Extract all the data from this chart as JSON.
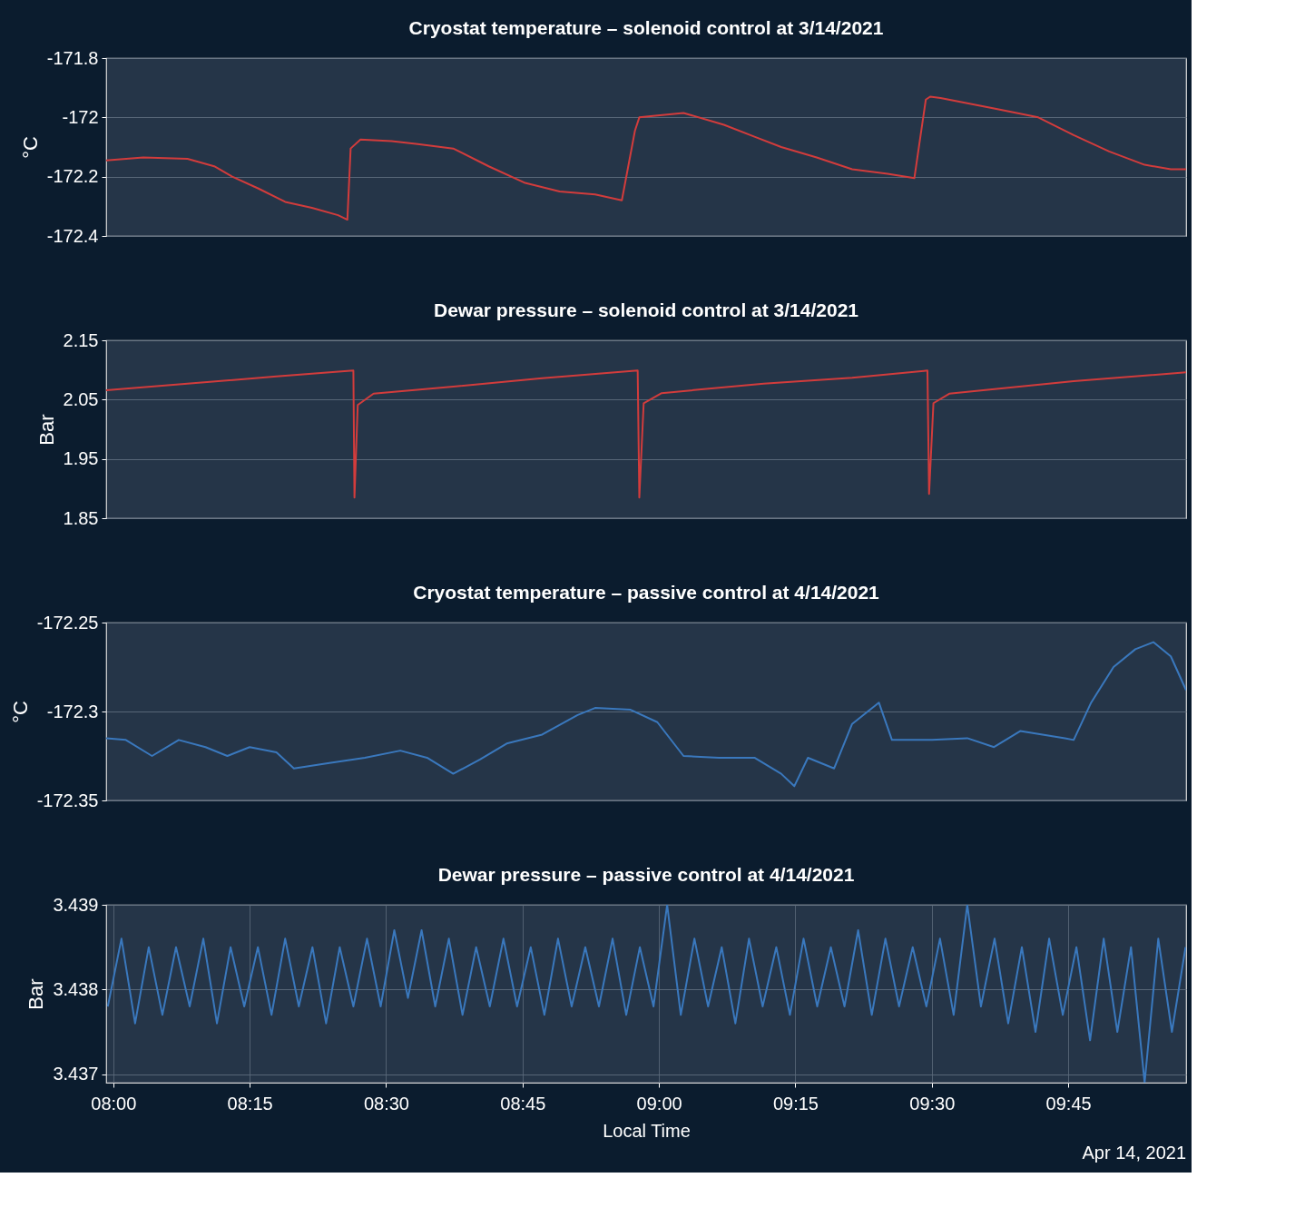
{
  "chart_data": [
    {
      "type": "line",
      "title": "Cryostat temperature – solenoid control  at 3/14/2021",
      "ylabel": "°C",
      "xlim": [
        7.987,
        9.966
      ],
      "ylim": [
        -172.4,
        -171.8
      ],
      "yticks": [
        -171.8,
        -172,
        -172.2,
        -172.4
      ],
      "grid": "y",
      "tick_labels": "y",
      "x": [
        7.987,
        8.055,
        8.136,
        8.185,
        8.218,
        8.266,
        8.315,
        8.364,
        8.412,
        8.429,
        8.435,
        8.453,
        8.51,
        8.558,
        8.623,
        8.688,
        8.753,
        8.818,
        8.883,
        8.932,
        8.956,
        8.964,
        8.989,
        9.045,
        9.119,
        9.175,
        9.224,
        9.289,
        9.354,
        9.419,
        9.468,
        9.489,
        9.497,
        9.516,
        9.614,
        9.695,
        9.76,
        9.825,
        9.89,
        9.938,
        9.966
      ],
      "series": [
        {
          "color": "#d23c3c",
          "values": [
            -172.145,
            -172.135,
            -172.14,
            -172.165,
            -172.2,
            -172.24,
            -172.285,
            -172.305,
            -172.33,
            -172.345,
            -172.105,
            -172.075,
            -172.08,
            -172.09,
            -172.105,
            -172.165,
            -172.22,
            -172.25,
            -172.26,
            -172.28,
            -172.045,
            -172.0,
            -171.995,
            -171.985,
            -172.025,
            -172.065,
            -172.1,
            -172.135,
            -172.175,
            -172.19,
            -172.205,
            -171.94,
            -171.93,
            -171.935,
            -171.97,
            -172.0,
            -172.06,
            -172.115,
            -172.16,
            -172.175,
            -172.175
          ]
        }
      ]
    },
    {
      "type": "line",
      "title": "Dewar pressure – solenoid control  at 3/14/2021",
      "ylabel": "Bar",
      "xlim": [
        7.987,
        9.966
      ],
      "ylim": [
        1.85,
        2.15
      ],
      "yticks": [
        2.15,
        2.05,
        1.95,
        1.85
      ],
      "grid": "y",
      "tick_labels": "y",
      "x": [
        7.987,
        8.136,
        8.299,
        8.44,
        8.442,
        8.448,
        8.477,
        8.623,
        8.786,
        8.961,
        8.964,
        8.972,
        9.005,
        9.192,
        9.354,
        9.492,
        9.495,
        9.503,
        9.532,
        9.76,
        9.966
      ],
      "series": [
        {
          "color": "#d23c3c",
          "values": [
            2.066,
            2.077,
            2.089,
            2.099,
            1.885,
            2.041,
            2.06,
            2.072,
            2.086,
            2.099,
            1.885,
            2.044,
            2.061,
            2.077,
            2.087,
            2.099,
            1.891,
            2.044,
            2.06,
            2.081,
            2.096
          ]
        }
      ]
    },
    {
      "type": "line",
      "title": "Cryostat temperature – passive control  at 4/14/2021",
      "ylabel": "°C",
      "xlim": [
        7.987,
        9.966
      ],
      "ylim": [
        -172.35,
        -172.25
      ],
      "yticks": [
        -172.25,
        -172.3,
        -172.35
      ],
      "grid": "y",
      "tick_labels": "y",
      "x": [
        7.987,
        8.023,
        8.071,
        8.12,
        8.169,
        8.209,
        8.25,
        8.299,
        8.331,
        8.396,
        8.461,
        8.526,
        8.575,
        8.623,
        8.672,
        8.721,
        8.786,
        8.851,
        8.883,
        8.948,
        8.997,
        9.045,
        9.11,
        9.175,
        9.224,
        9.248,
        9.273,
        9.321,
        9.354,
        9.403,
        9.427,
        9.5,
        9.565,
        9.614,
        9.662,
        9.744,
        9.76,
        9.792,
        9.833,
        9.873,
        9.906,
        9.938,
        9.966
      ],
      "series": [
        {
          "color": "#3a78bd",
          "values": [
            -172.315,
            -172.316,
            -172.325,
            -172.316,
            -172.32,
            -172.325,
            -172.32,
            -172.323,
            -172.332,
            -172.329,
            -172.326,
            -172.322,
            -172.326,
            -172.335,
            -172.327,
            -172.318,
            -172.313,
            -172.302,
            -172.298,
            -172.299,
            -172.306,
            -172.325,
            -172.326,
            -172.326,
            -172.335,
            -172.342,
            -172.326,
            -172.332,
            -172.307,
            -172.295,
            -172.316,
            -172.316,
            -172.315,
            -172.32,
            -172.311,
            -172.315,
            -172.316,
            -172.295,
            -172.275,
            -172.265,
            -172.261,
            -172.269,
            -172.288
          ]
        }
      ]
    },
    {
      "type": "line",
      "title": "Dewar pressure – passive control  at 4/14/2021",
      "ylabel": "Bar",
      "xlabel": "Local Time",
      "annotations": [
        "Apr 14, 2021"
      ],
      "xlim": [
        7.987,
        9.966
      ],
      "ylim": [
        3.4369,
        3.439
      ],
      "yticks": [
        3.437,
        3.438,
        3.439
      ],
      "grid": true,
      "xticks": [
        {
          "value": 8,
          "label": "08:00"
        },
        {
          "value": 8.25,
          "label": "08:15"
        },
        {
          "value": 8.5,
          "label": "08:30"
        },
        {
          "value": 8.75,
          "label": "08:45"
        },
        {
          "value": 9,
          "label": "09:00"
        },
        {
          "value": 9.25,
          "label": "09:15"
        },
        {
          "value": 9.5,
          "label": "09:30"
        },
        {
          "value": 9.75,
          "label": "09:45"
        }
      ],
      "x": [
        7.99,
        8.015,
        8.04,
        8.065,
        8.09,
        8.115,
        8.14,
        8.165,
        8.19,
        8.215,
        8.24,
        8.265,
        8.29,
        8.315,
        8.34,
        8.365,
        8.39,
        8.415,
        8.44,
        8.465,
        8.49,
        8.515,
        8.54,
        8.565,
        8.59,
        8.615,
        8.64,
        8.665,
        8.69,
        8.715,
        8.74,
        8.765,
        8.79,
        8.815,
        8.84,
        8.865,
        8.89,
        8.915,
        8.94,
        8.965,
        8.99,
        9.015,
        9.04,
        9.065,
        9.09,
        9.115,
        9.14,
        9.165,
        9.19,
        9.215,
        9.24,
        9.265,
        9.29,
        9.315,
        9.34,
        9.365,
        9.39,
        9.415,
        9.44,
        9.465,
        9.49,
        9.515,
        9.54,
        9.565,
        9.59,
        9.615,
        9.64,
        9.665,
        9.69,
        9.715,
        9.74,
        9.765,
        9.79,
        9.815,
        9.84,
        9.865,
        9.89,
        9.915,
        9.94,
        9.965
      ],
      "series": [
        {
          "color": "#3a78bd",
          "values": [
            3.4378,
            3.4386,
            3.4376,
            3.4385,
            3.4377,
            3.4385,
            3.4378,
            3.4386,
            3.4376,
            3.4385,
            3.4378,
            3.4385,
            3.4377,
            3.4386,
            3.4378,
            3.4385,
            3.4376,
            3.4385,
            3.4378,
            3.4386,
            3.4378,
            3.4387,
            3.4379,
            3.4387,
            3.4378,
            3.4386,
            3.4377,
            3.4385,
            3.4378,
            3.4386,
            3.4378,
            3.4385,
            3.4377,
            3.4386,
            3.4378,
            3.4385,
            3.4378,
            3.4386,
            3.4377,
            3.4385,
            3.4378,
            3.439,
            3.4377,
            3.4386,
            3.4378,
            3.4385,
            3.4376,
            3.4386,
            3.4378,
            3.4385,
            3.4377,
            3.4386,
            3.4378,
            3.4385,
            3.4378,
            3.4387,
            3.4377,
            3.4386,
            3.4378,
            3.4385,
            3.4378,
            3.4386,
            3.4377,
            3.439,
            3.4378,
            3.4386,
            3.4376,
            3.4385,
            3.4375,
            3.4386,
            3.4377,
            3.4385,
            3.4374,
            3.4386,
            3.4375,
            3.4385,
            3.4369,
            3.4386,
            3.4375,
            3.4385
          ]
        }
      ]
    }
  ]
}
